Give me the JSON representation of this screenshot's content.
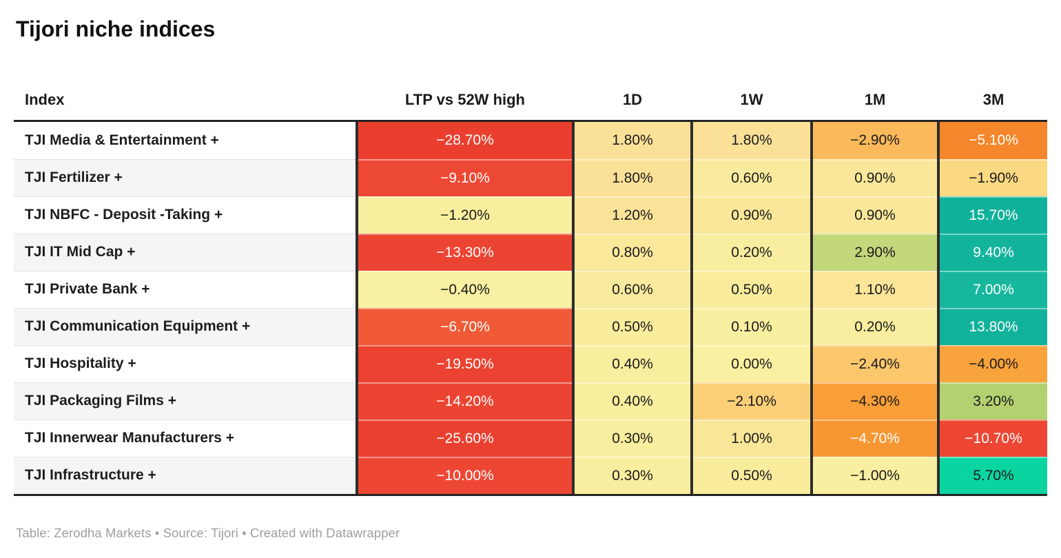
{
  "title": "Tijori niche indices",
  "footer": "Table: Zerodha Markets • Source: Tijori • Created with Datawrapper",
  "colors": {
    "thick_rule": "#242424",
    "column_separator": "#2d2d2d",
    "row_alt_background": "#f5f5f5",
    "cell_text_dark": "#1a1a1a",
    "cell_text_light": "#ffffff",
    "footer_text": "#9e9e9e",
    "scale_red": "#ec4433",
    "scale_orange": "#f9a23c",
    "scale_yellow": "#f9f0a1",
    "scale_green": "#b3d170",
    "scale_teal": "#12b39b"
  },
  "chart_data": {
    "type": "table",
    "title": "Tijori niche indices",
    "columns": [
      "Index",
      "LTP vs 52W high",
      "1D",
      "1W",
      "1M",
      "3M"
    ],
    "rows": [
      {
        "name": "TJI Media & Entertainment +",
        "cells": [
          {
            "value": "−28.70%",
            "bg": "#ea3f2f",
            "fg": "#ffffff"
          },
          {
            "value": "1.80%",
            "bg": "#fbe198"
          },
          {
            "value": "1.80%",
            "bg": "#fbe198"
          },
          {
            "value": "−2.90%",
            "bg": "#fab95a"
          },
          {
            "value": "−5.10%",
            "bg": "#f5862b",
            "fg": "#ffffff"
          }
        ]
      },
      {
        "name": "TJI Fertilizer +",
        "cells": [
          {
            "value": "−9.10%",
            "bg": "#ed4834",
            "fg": "#ffffff"
          },
          {
            "value": "1.80%",
            "bg": "#fbe198"
          },
          {
            "value": "0.60%",
            "bg": "#f9eb9d"
          },
          {
            "value": "0.90%",
            "bg": "#fae79a"
          },
          {
            "value": "−1.90%",
            "bg": "#fbd983"
          }
        ]
      },
      {
        "name": "TJI NBFC - Deposit -Taking +",
        "cells": [
          {
            "value": "−1.20%",
            "bg": "#f8ee9e"
          },
          {
            "value": "1.20%",
            "bg": "#fae399"
          },
          {
            "value": "0.90%",
            "bg": "#fae79a"
          },
          {
            "value": "0.90%",
            "bg": "#fae79a"
          },
          {
            "value": "15.70%",
            "bg": "#10b19a",
            "fg": "#ffffff"
          }
        ]
      },
      {
        "name": "TJI IT Mid Cap +",
        "cells": [
          {
            "value": "−13.30%",
            "bg": "#ec4433",
            "fg": "#ffffff"
          },
          {
            "value": "0.80%",
            "bg": "#fae89b"
          },
          {
            "value": "0.20%",
            "bg": "#f9ee9f"
          },
          {
            "value": "2.90%",
            "bg": "#c3d77b"
          },
          {
            "value": "9.40%",
            "bg": "#13b49c",
            "fg": "#ffffff"
          }
        ]
      },
      {
        "name": "TJI Private Bank +",
        "cells": [
          {
            "value": "−0.40%",
            "bg": "#f8f0a2"
          },
          {
            "value": "0.60%",
            "bg": "#f9eb9d"
          },
          {
            "value": "0.50%",
            "bg": "#f9ec9d"
          },
          {
            "value": "1.10%",
            "bg": "#fae599"
          },
          {
            "value": "7.00%",
            "bg": "#17b79e",
            "fg": "#ffffff"
          }
        ]
      },
      {
        "name": "TJI Communication Equipment +",
        "cells": [
          {
            "value": "−6.70%",
            "bg": "#f05a36",
            "fg": "#ffffff"
          },
          {
            "value": "0.50%",
            "bg": "#f9ec9d"
          },
          {
            "value": "0.10%",
            "bg": "#f9efa0"
          },
          {
            "value": "0.20%",
            "bg": "#f9ee9f"
          },
          {
            "value": "13.80%",
            "bg": "#11b29b",
            "fg": "#ffffff"
          }
        ]
      },
      {
        "name": "TJI Hospitality +",
        "cells": [
          {
            "value": "−19.50%",
            "bg": "#eb4231",
            "fg": "#ffffff"
          },
          {
            "value": "0.40%",
            "bg": "#f9ed9e"
          },
          {
            "value": "0.00%",
            "bg": "#f9f0a1"
          },
          {
            "value": "−2.40%",
            "bg": "#fbc76d"
          },
          {
            "value": "−4.00%",
            "bg": "#f9a33c"
          }
        ]
      },
      {
        "name": "TJI Packaging Films +",
        "cells": [
          {
            "value": "−14.20%",
            "bg": "#ec4432",
            "fg": "#ffffff"
          },
          {
            "value": "0.40%",
            "bg": "#f9ed9e"
          },
          {
            "value": "−2.10%",
            "bg": "#fbcf78"
          },
          {
            "value": "−4.30%",
            "bg": "#f99f38"
          },
          {
            "value": "3.20%",
            "bg": "#b3d170"
          }
        ]
      },
      {
        "name": "TJI Innerwear Manufacturers +",
        "cells": [
          {
            "value": "−25.60%",
            "bg": "#ea402f",
            "fg": "#ffffff"
          },
          {
            "value": "0.30%",
            "bg": "#f9ee9f"
          },
          {
            "value": "1.00%",
            "bg": "#fae699"
          },
          {
            "value": "−4.70%",
            "bg": "#f89732",
            "fg": "#ffffff"
          },
          {
            "value": "−10.70%",
            "bg": "#ed4734",
            "fg": "#ffffff"
          }
        ]
      },
      {
        "name": "TJI Infrastructure +",
        "cells": [
          {
            "value": "−10.00%",
            "bg": "#ed4734",
            "fg": "#ffffff"
          },
          {
            "value": "0.30%",
            "bg": "#f9ee9f"
          },
          {
            "value": "0.50%",
            "bg": "#f9ec9d"
          },
          {
            "value": "−1.00%",
            "bg": "#f9efa0"
          },
          {
            "value": "5.70%",
            "bg": "#0ad5a1"
          }
        ]
      }
    ]
  }
}
